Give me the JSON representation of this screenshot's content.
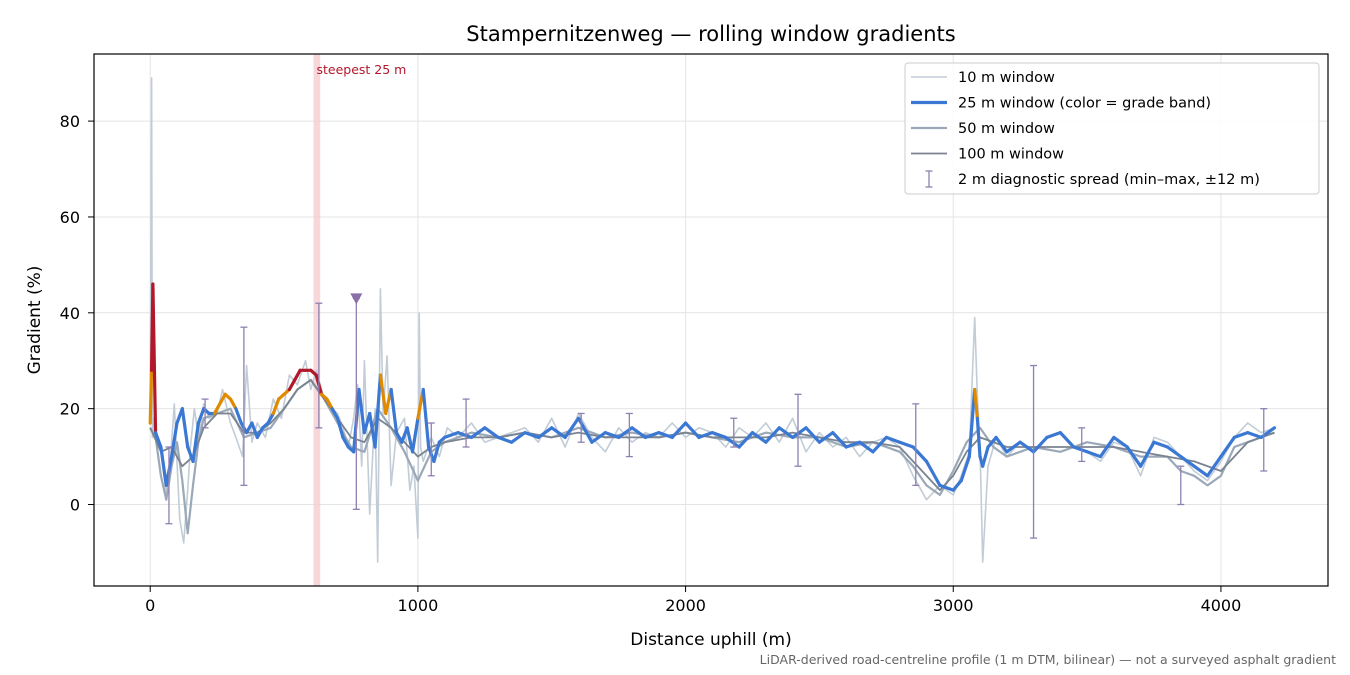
{
  "chart_data": {
    "type": "line",
    "title": "Stampernitzenweg — rolling window gradients",
    "xlabel": "Distance uphill (m)",
    "ylabel": "Gradient (%)",
    "xlim": [
      -210,
      4400
    ],
    "ylim": [
      -17,
      94
    ],
    "xticks": [
      0,
      1000,
      2000,
      3000,
      4000
    ],
    "yticks": [
      0,
      20,
      40,
      60,
      80
    ],
    "grid": true,
    "legend_position": "top-right",
    "footnote": "LiDAR-derived road-centreline profile (1 m DTM, bilinear) — not a surveyed asphalt gradient",
    "annotation": {
      "text": "steepest 25 m",
      "x_range": [
        610,
        635
      ]
    },
    "marker": {
      "x": 770,
      "y": 43,
      "color": "#8870a8"
    },
    "grade_band_colors": {
      "normal": "#3a78d4",
      "steep": "#e08a00",
      "very_steep": "#b2182b"
    },
    "series": [
      {
        "name": "10 m window",
        "color": "#c2ccd6",
        "width": 1.6,
        "x": [
          0,
          5,
          8,
          12,
          20,
          40,
          60,
          75,
          90,
          110,
          125,
          140,
          150,
          165,
          180,
          200,
          220,
          250,
          270,
          300,
          320,
          345,
          360,
          380,
          400,
          430,
          460,
          490,
          520,
          550,
          580,
          600,
          620,
          650,
          680,
          700,
          720,
          740,
          760,
          775,
          790,
          800,
          820,
          840,
          850,
          860,
          870,
          885,
          900,
          920,
          950,
          970,
          985,
          1000,
          1005,
          1010,
          1020,
          1050,
          1080,
          1110,
          1150,
          1200,
          1250,
          1300,
          1350,
          1400,
          1450,
          1500,
          1550,
          1600,
          1650,
          1700,
          1750,
          1800,
          1850,
          1900,
          1950,
          2000,
          2050,
          2100,
          2150,
          2200,
          2250,
          2300,
          2350,
          2400,
          2450,
          2500,
          2550,
          2600,
          2650,
          2700,
          2750,
          2800,
          2850,
          2900,
          2950,
          3000,
          3030,
          3060,
          3080,
          3090,
          3100,
          3110,
          3130,
          3160,
          3200,
          3250,
          3300,
          3350,
          3400,
          3450,
          3500,
          3550,
          3600,
          3650,
          3700,
          3750,
          3800,
          3850,
          3900,
          3950,
          4000,
          4050,
          4100,
          4150,
          4200
        ],
        "y": [
          17,
          89,
          14,
          18,
          14,
          11,
          2,
          9,
          21,
          -3,
          -8,
          3,
          12,
          20,
          14,
          21,
          18,
          19,
          24,
          17,
          14,
          10,
          29,
          13,
          17,
          14,
          22,
          18,
          27,
          25,
          30,
          24,
          28,
          22,
          20,
          19,
          16,
          12,
          18,
          25,
          8,
          30,
          -2,
          20,
          -12,
          45,
          19,
          31,
          4,
          15,
          18,
          3,
          8,
          -7,
          40,
          12,
          9,
          14,
          10,
          16,
          14,
          17,
          13,
          14,
          15,
          16,
          13,
          18,
          12,
          19,
          14,
          11,
          16,
          13,
          15,
          14,
          17,
          14,
          16,
          15,
          12,
          16,
          14,
          17,
          13,
          18,
          11,
          15,
          12,
          14,
          10,
          13,
          14,
          12,
          6,
          1,
          4,
          2,
          6,
          11,
          39,
          23,
          12,
          -12,
          8,
          14,
          10,
          13,
          11,
          14,
          15,
          12,
          11,
          9,
          13,
          12,
          6,
          14,
          13,
          10,
          7,
          5,
          9,
          14,
          17,
          15,
          16
        ]
      },
      {
        "name": "25 m window (color = grade band)",
        "color": "#3a78d4",
        "width": 3.2,
        "color_by_grade": true,
        "x": [
          0,
          5,
          10,
          20,
          40,
          60,
          80,
          100,
          120,
          140,
          160,
          180,
          200,
          220,
          240,
          260,
          280,
          300,
          320,
          340,
          360,
          380,
          400,
          420,
          440,
          460,
          480,
          500,
          520,
          540,
          560,
          580,
          600,
          620,
          640,
          660,
          680,
          700,
          720,
          740,
          760,
          780,
          800,
          820,
          840,
          860,
          880,
          900,
          920,
          940,
          960,
          980,
          1000,
          1020,
          1040,
          1060,
          1080,
          1100,
          1150,
          1200,
          1250,
          1300,
          1350,
          1400,
          1450,
          1500,
          1550,
          1600,
          1650,
          1700,
          1750,
          1800,
          1850,
          1900,
          1950,
          2000,
          2050,
          2100,
          2150,
          2200,
          2250,
          2300,
          2350,
          2400,
          2450,
          2500,
          2550,
          2600,
          2650,
          2700,
          2750,
          2800,
          2850,
          2900,
          2950,
          3000,
          3030,
          3060,
          3080,
          3090,
          3100,
          3110,
          3130,
          3160,
          3200,
          3250,
          3300,
          3350,
          3400,
          3450,
          3500,
          3550,
          3600,
          3650,
          3700,
          3750,
          3800,
          3850,
          3900,
          3950,
          4000,
          4050,
          4100,
          4150,
          4200
        ],
        "y": [
          17,
          28,
          46,
          15,
          12,
          4,
          10,
          17,
          20,
          12,
          9,
          17,
          20,
          19,
          19,
          21,
          23,
          22,
          20,
          17,
          15,
          17,
          14,
          16,
          17,
          19,
          22,
          23,
          24,
          26,
          28,
          28,
          28,
          27,
          23,
          22,
          20,
          18,
          14,
          12,
          11,
          24,
          15,
          19,
          12,
          27,
          19,
          24,
          15,
          13,
          16,
          11,
          18,
          24,
          12,
          9,
          13,
          14,
          15,
          14,
          16,
          14,
          13,
          15,
          14,
          16,
          14,
          18,
          13,
          15,
          14,
          16,
          14,
          15,
          14,
          17,
          14,
          15,
          14,
          12,
          15,
          13,
          16,
          14,
          16,
          13,
          15,
          12,
          13,
          11,
          14,
          13,
          12,
          9,
          4,
          3,
          5,
          10,
          24,
          18,
          10,
          8,
          12,
          14,
          11,
          13,
          11,
          14,
          15,
          12,
          11,
          10,
          14,
          12,
          8,
          13,
          12,
          10,
          8,
          6,
          10,
          14,
          15,
          14,
          16
        ]
      },
      {
        "name": "50 m window",
        "color": "#9aa8b8",
        "width": 2.2,
        "x": [
          0,
          20,
          40,
          60,
          80,
          100,
          120,
          140,
          160,
          180,
          200,
          250,
          300,
          350,
          400,
          450,
          500,
          550,
          600,
          650,
          700,
          750,
          800,
          850,
          900,
          950,
          1000,
          1050,
          1100,
          1200,
          1300,
          1400,
          1500,
          1600,
          1700,
          1800,
          1900,
          2000,
          2100,
          2200,
          2300,
          2400,
          2500,
          2600,
          2700,
          2800,
          2850,
          2900,
          2950,
          3000,
          3050,
          3100,
          3150,
          3200,
          3300,
          3400,
          3500,
          3600,
          3700,
          3800,
          3850,
          3900,
          3950,
          4000,
          4050,
          4100,
          4150,
          4200
        ],
        "y": [
          16,
          14,
          6,
          1,
          8,
          13,
          5,
          -6,
          4,
          13,
          18,
          19,
          20,
          14,
          15,
          16,
          20,
          24,
          26,
          22,
          17,
          12,
          11,
          20,
          16,
          11,
          5,
          11,
          13,
          15,
          14,
          15,
          14,
          16,
          14,
          15,
          14,
          15,
          14,
          13,
          15,
          14,
          14,
          12,
          13,
          11,
          8,
          4,
          2,
          7,
          13,
          16,
          12,
          10,
          12,
          11,
          13,
          12,
          10,
          10,
          7,
          6,
          4,
          6,
          12,
          13,
          14,
          15
        ]
      },
      {
        "name": "100 m window",
        "color": "#7a8490",
        "width": 1.8,
        "x": [
          0,
          40,
          80,
          120,
          160,
          200,
          250,
          300,
          350,
          400,
          450,
          500,
          550,
          600,
          650,
          700,
          750,
          800,
          850,
          900,
          950,
          1000,
          1050,
          1100,
          1200,
          1300,
          1400,
          1500,
          1600,
          1700,
          1800,
          1900,
          2000,
          2100,
          2200,
          2300,
          2400,
          2500,
          2600,
          2700,
          2800,
          2900,
          2950,
          3000,
          3050,
          3100,
          3200,
          3300,
          3400,
          3500,
          3600,
          3700,
          3800,
          3900,
          4000,
          4050,
          4100,
          4200
        ],
        "y": [
          16,
          11,
          12,
          8,
          10,
          16,
          19,
          19,
          15,
          15,
          17,
          20,
          24,
          26,
          22,
          18,
          14,
          13,
          18,
          16,
          13,
          10,
          12,
          13,
          14,
          14,
          15,
          14,
          15,
          14,
          14,
          14,
          15,
          14,
          14,
          14,
          15,
          14,
          13,
          13,
          12,
          6,
          3,
          6,
          11,
          14,
          12,
          12,
          12,
          12,
          12,
          11,
          10,
          9,
          7,
          10,
          13,
          15
        ]
      }
    ],
    "errorbar_series": {
      "name": "2 m diagnostic spread (min–max, ±12 m)",
      "color": "#8f80b0",
      "points": [
        {
          "x": 70,
          "y": 8,
          "low": -4,
          "high": 12
        },
        {
          "x": 205,
          "y": 19,
          "low": 16,
          "high": 22
        },
        {
          "x": 350,
          "y": 15,
          "low": 4,
          "high": 37
        },
        {
          "x": 630,
          "y": 27,
          "low": 16,
          "high": 42
        },
        {
          "x": 770,
          "y": 20,
          "low": -1,
          "high": 43
        },
        {
          "x": 1050,
          "y": 12,
          "low": 6,
          "high": 17
        },
        {
          "x": 1180,
          "y": 15,
          "low": 12,
          "high": 22
        },
        {
          "x": 1610,
          "y": 16,
          "low": 13,
          "high": 19
        },
        {
          "x": 1790,
          "y": 14,
          "low": 10,
          "high": 19
        },
        {
          "x": 2180,
          "y": 15,
          "low": 12,
          "high": 18
        },
        {
          "x": 2420,
          "y": 14,
          "low": 8,
          "high": 23
        },
        {
          "x": 2860,
          "y": 10,
          "low": 4,
          "high": 21
        },
        {
          "x": 3300,
          "y": 12,
          "low": -7,
          "high": 29
        },
        {
          "x": 3480,
          "y": 12,
          "low": 9,
          "high": 16
        },
        {
          "x": 3850,
          "y": 5,
          "low": 0,
          "high": 8
        },
        {
          "x": 4160,
          "y": 14,
          "low": 7,
          "high": 20
        }
      ]
    }
  }
}
